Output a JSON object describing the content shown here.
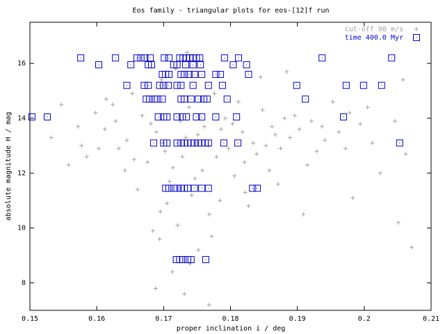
{
  "chart_data": {
    "type": "scatter",
    "title": "Eos family - triangular plots for eos-[12]f run",
    "xlabel": "proper inclination i / deg",
    "ylabel": "absolute magnitude H / mag",
    "xlim": [
      0.15,
      0.21
    ],
    "xticks": [
      0.15,
      0.16,
      0.17,
      0.18,
      0.19,
      0.2,
      0.21
    ],
    "ylim": [
      7,
      17.5
    ],
    "yticks": [
      8,
      10,
      12,
      14,
      16
    ],
    "legend": "top-right",
    "grid": false,
    "series": [
      {
        "name": "cut-off 90 m/s",
        "color": "#a0a0a0",
        "marker": "plus",
        "x": [
          0.1612,
          0.1645,
          0.1668,
          0.1702,
          0.1725,
          0.1751,
          0.1779,
          0.1803,
          0.1834,
          0.1862,
          0.1889,
          0.1921,
          0.1598,
          0.1633,
          0.1689,
          0.1714,
          0.1738,
          0.1767,
          0.1792,
          0.1821,
          0.1848,
          0.1875,
          0.1903,
          0.1941,
          0.1577,
          0.1624,
          0.1656,
          0.1681,
          0.1709,
          0.1733,
          0.1758,
          0.1786,
          0.1812,
          0.1839,
          0.1867,
          0.1896,
          0.1929,
          0.1962,
          0.1705,
          0.1742,
          0.1768,
          0.1721,
          0.1694,
          0.1752,
          0.1713,
          0.1731,
          0.1768,
          0.1688,
          0.1827,
          0.1806,
          0.1661,
          0.1642,
          0.1585,
          0.1558,
          0.1532,
          0.1547,
          0.1994,
          0.2012,
          0.2046,
          0.2062,
          0.2058,
          0.2071,
          0.2051,
          0.2024,
          0.1983,
          0.1909,
          0.1871,
          0.1845,
          0.1884,
          0.1735,
          0.1718,
          0.1697,
          0.1776,
          0.1653,
          0.1614,
          0.1953,
          0.1978,
          0.1915,
          0.1858,
          0.1822,
          0.1784,
          0.1747,
          0.1676,
          0.1628,
          0.1603,
          0.1572,
          0.1699,
          0.1728,
          0.1761,
          0.1797,
          0.1818,
          0.1853,
          0.1881,
          0.1937,
          0.1972,
          0.2005,
          0.1684,
          0.1772,
          0.1739,
          0.1695
        ],
        "values": [
          13.6,
          13.2,
          14.1,
          12.8,
          13.9,
          13.4,
          12.6,
          13.8,
          13.1,
          13.7,
          13.3,
          13.9,
          14.2,
          12.9,
          13.5,
          12.2,
          14.4,
          13.0,
          14.0,
          12.4,
          14.3,
          12.9,
          13.6,
          13.2,
          13.0,
          14.5,
          12.5,
          13.8,
          11.7,
          13.3,
          12.1,
          13.6,
          14.6,
          12.7,
          13.4,
          14.1,
          12.8,
          13.5,
          10.9,
          11.2,
          10.5,
          10.1,
          9.6,
          9.2,
          8.4,
          7.6,
          7.2,
          7.8,
          10.8,
          11.9,
          11.4,
          12.1,
          12.6,
          12.3,
          13.3,
          14.5,
          13.8,
          13.1,
          13.9,
          12.7,
          15.4,
          9.3,
          10.2,
          12.0,
          11.1,
          10.5,
          11.6,
          15.5,
          15.7,
          16.4,
          15.8,
          15.4,
          14.9,
          14.9,
          14.7,
          14.6,
          14.2,
          12.3,
          12.1,
          11.3,
          11.0,
          11.8,
          12.4,
          13.9,
          12.9,
          13.7,
          13.1,
          12.6,
          13.7,
          12.9,
          13.5,
          13.0,
          14.0,
          13.7,
          12.9,
          14.4,
          9.9,
          9.7,
          8.7,
          10.6
        ]
      },
      {
        "name": "time 400.0 Myr",
        "color": "#0000cc",
        "marker": "square",
        "x": [
          0.1576,
          0.1628,
          0.166,
          0.1666,
          0.1672,
          0.168,
          0.1701,
          0.1708,
          0.1724,
          0.1729,
          0.1734,
          0.1739,
          0.1744,
          0.1749,
          0.1754,
          0.1791,
          0.1812,
          0.1937,
          0.2041,
          0.1603,
          0.1651,
          0.1677,
          0.1682,
          0.1715,
          0.172,
          0.1733,
          0.1744,
          0.1755,
          0.1804,
          0.1824,
          0.1698,
          0.1703,
          0.1708,
          0.1726,
          0.1731,
          0.1738,
          0.1746,
          0.1757,
          0.1778,
          0.1785,
          0.1827,
          0.1645,
          0.1671,
          0.1677,
          0.1694,
          0.17,
          0.1707,
          0.172,
          0.1726,
          0.1744,
          0.1767,
          0.1788,
          0.1899,
          0.1973,
          0.1999,
          0.2026,
          0.1674,
          0.1679,
          0.1686,
          0.1691,
          0.1698,
          0.1726,
          0.1731,
          0.1741,
          0.1752,
          0.176,
          0.1765,
          0.1795,
          0.1912,
          0.1503,
          0.1526,
          0.1692,
          0.17,
          0.1705,
          0.172,
          0.1728,
          0.1734,
          0.1749,
          0.1757,
          0.1778,
          0.1809,
          0.1969,
          0.1685,
          0.17,
          0.1705,
          0.172,
          0.1726,
          0.1731,
          0.1736,
          0.1741,
          0.1746,
          0.1752,
          0.1757,
          0.1762,
          0.1767,
          0.179,
          0.1811,
          0.2053,
          0.1703,
          0.1708,
          0.1715,
          0.172,
          0.1726,
          0.1731,
          0.1736,
          0.1746,
          0.1757,
          0.1767,
          0.1833,
          0.184,
          0.1719,
          0.1724,
          0.1729,
          0.1736,
          0.1741,
          0.1763
        ],
        "values": [
          16.2,
          16.2,
          16.2,
          16.2,
          16.2,
          16.2,
          16.2,
          16.2,
          16.2,
          16.2,
          16.2,
          16.2,
          16.2,
          16.2,
          16.2,
          16.2,
          16.2,
          16.2,
          16.2,
          15.95,
          15.95,
          15.95,
          15.95,
          15.95,
          15.95,
          15.95,
          15.95,
          15.95,
          15.95,
          15.95,
          15.6,
          15.6,
          15.6,
          15.6,
          15.6,
          15.6,
          15.6,
          15.6,
          15.6,
          15.6,
          15.6,
          15.2,
          15.2,
          15.2,
          15.2,
          15.2,
          15.2,
          15.2,
          15.2,
          15.2,
          15.2,
          15.2,
          15.2,
          15.2,
          15.2,
          15.2,
          14.7,
          14.7,
          14.7,
          14.7,
          14.7,
          14.7,
          14.7,
          14.7,
          14.7,
          14.7,
          14.7,
          14.7,
          14.7,
          14.05,
          14.05,
          14.05,
          14.05,
          14.05,
          14.05,
          14.05,
          14.05,
          14.05,
          14.05,
          14.05,
          14.05,
          14.05,
          13.1,
          13.1,
          13.1,
          13.1,
          13.1,
          13.1,
          13.1,
          13.1,
          13.1,
          13.1,
          13.1,
          13.1,
          13.1,
          13.1,
          13.1,
          13.1,
          11.45,
          11.45,
          11.45,
          11.45,
          11.45,
          11.45,
          11.45,
          11.45,
          11.45,
          11.45,
          11.45,
          11.45,
          8.85,
          8.85,
          8.85,
          8.85,
          8.85,
          8.85
        ]
      }
    ]
  }
}
